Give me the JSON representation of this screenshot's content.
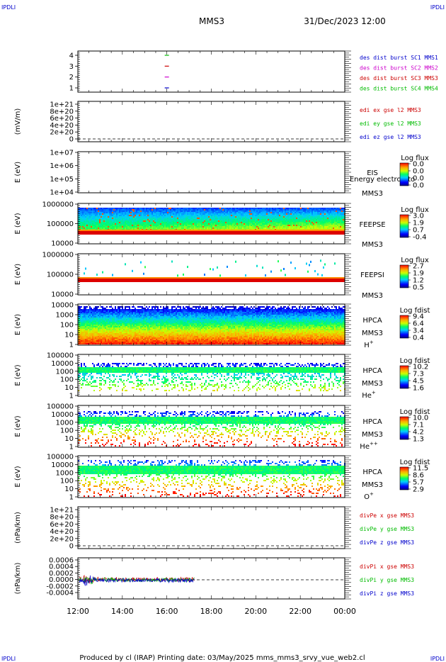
{
  "corner_labels": {
    "top_left": "IPDLI",
    "top_right": "IPDLI",
    "bottom_left": "IPDLI",
    "bottom_right": "IPDLI"
  },
  "header": {
    "spacecraft": "MMS3",
    "datetime": "31/Dec/2023 12:00"
  },
  "footer": {
    "text": "Produced by cl (IRAP)   Printing date: 03/May/2025   mms_mms3_srvy_vue_web2.cl"
  },
  "colors": {
    "blue": "#0000cc",
    "magenta": "#cc00cc",
    "red": "#cc0000",
    "green": "#00bb00",
    "frame": "#000000"
  },
  "chart_data": [
    {
      "id": "burst",
      "type": "scatter",
      "yticks": [
        "1",
        "2",
        "3",
        "4"
      ],
      "series": [
        {
          "name": "des dist burst SC1 MMS1",
          "color": "#0000cc",
          "x": [
            "16:00"
          ],
          "y": [
            1
          ]
        },
        {
          "name": "des dist burst SC2 MMS2",
          "color": "#cc00cc",
          "x": [
            "16:00"
          ],
          "y": [
            2
          ]
        },
        {
          "name": "des dist burst SC3 MMS3",
          "color": "#cc0000",
          "x": [
            "16:00"
          ],
          "y": [
            3
          ]
        },
        {
          "name": "des dist burst SC4 MMS4",
          "color": "#00bb00",
          "x": [
            "16:00"
          ],
          "y": [
            4
          ]
        }
      ]
    },
    {
      "id": "edi",
      "type": "line",
      "ylabel": "(mV/m)",
      "yticks": [
        "1e+21",
        "8e+20",
        "6e+20",
        "4e+20",
        "2e+20",
        "0"
      ],
      "series": [
        {
          "name": "edi ex gse l2 MMS3",
          "color": "#cc0000"
        },
        {
          "name": "edi ey gse l2 MMS3",
          "color": "#00bb00"
        },
        {
          "name": "edi ez gse l2 MMS3",
          "color": "#0000cc"
        }
      ]
    },
    {
      "id": "eis",
      "type": "heatmap",
      "ylabel": "E (eV)",
      "yticks": [
        "1e+07",
        "1e+06",
        "1e+05",
        "1e+04"
      ],
      "instrument": "EIS",
      "overlay": "Energy electron to",
      "spacecraft": "MMS3",
      "colorbar": {
        "title": "Log flux",
        "ticks": [
          "0.0",
          "0.0",
          "0.0",
          "0.0"
        ]
      }
    },
    {
      "id": "feepse",
      "type": "heatmap",
      "ylabel": "E (eV)",
      "yticks": [
        "1000000",
        "100000",
        "10000"
      ],
      "instrument": "FEEPSE",
      "spacecraft": "MMS3",
      "colorbar": {
        "title": "Log flux",
        "ticks": [
          "3.0",
          "1.9",
          "0.7",
          "-0.4"
        ]
      }
    },
    {
      "id": "feepsi",
      "type": "heatmap",
      "ylabel": "E (eV)",
      "yticks": [
        "1000000",
        "100000",
        "10000"
      ],
      "instrument": "FEEPSI",
      "spacecraft": "MMS3",
      "colorbar": {
        "title": "Log flux",
        "ticks": [
          "2.7",
          "1.9",
          "1.2",
          "0.5"
        ]
      }
    },
    {
      "id": "hpca_h",
      "type": "heatmap",
      "ylabel": "E (eV)",
      "yticks": [
        "10000",
        "1000",
        "100",
        "10",
        "1"
      ],
      "instrument": "HPCA",
      "spacecraft": "MMS3",
      "species": "H",
      "charge": "+",
      "colorbar": {
        "title": "Log fdist",
        "ticks": [
          "9.4",
          "6.4",
          "3.4",
          "0.4"
        ]
      }
    },
    {
      "id": "hpca_he",
      "type": "heatmap",
      "ylabel": "E (eV)",
      "yticks": [
        "100000",
        "10000",
        "1000",
        "100",
        "10",
        "1"
      ],
      "instrument": "HPCA",
      "spacecraft": "MMS3",
      "species": "He",
      "charge": "+",
      "colorbar": {
        "title": "Log fdist",
        "ticks": [
          "10.2",
          "7.3",
          "4.5",
          "1.6"
        ]
      }
    },
    {
      "id": "hpca_hepp",
      "type": "heatmap",
      "ylabel": "E (eV)",
      "yticks": [
        "100000",
        "10000",
        "1000",
        "100",
        "10",
        "1"
      ],
      "instrument": "HPCA",
      "spacecraft": "MMS3",
      "species": "He",
      "charge": "++",
      "colorbar": {
        "title": "Log fdist",
        "ticks": [
          "10.0",
          "7.1",
          "4.2",
          "1.3"
        ]
      }
    },
    {
      "id": "hpca_o",
      "type": "heatmap",
      "ylabel": "E (eV)",
      "yticks": [
        "100000",
        "10000",
        "1000",
        "100",
        "10",
        "1"
      ],
      "instrument": "HPCA",
      "spacecraft": "MMS3",
      "species": "O",
      "charge": "+",
      "colorbar": {
        "title": "Log fdist",
        "ticks": [
          "11.5",
          "8.6",
          "5.7",
          "2.9"
        ]
      }
    },
    {
      "id": "divpe",
      "type": "line",
      "ylabel": "(nPa/km)",
      "yticks": [
        "1e+21",
        "8e+20",
        "6e+20",
        "4e+20",
        "2e+20",
        "0"
      ],
      "series": [
        {
          "name": "divPe x gse MMS3",
          "color": "#cc0000"
        },
        {
          "name": "divPe y gse MMS3",
          "color": "#00bb00"
        },
        {
          "name": "divPe z gse MMS3",
          "color": "#0000cc"
        }
      ]
    },
    {
      "id": "divpi",
      "type": "line",
      "ylabel": "(nPa/km)",
      "yticks": [
        "0.0006",
        "0.0004",
        "0.0002",
        "0.0000",
        "-0.0002",
        "-0.0004"
      ],
      "series": [
        {
          "name": "divPi x gse MMS3",
          "color": "#cc0000"
        },
        {
          "name": "divPi y gse MMS3",
          "color": "#00bb00"
        },
        {
          "name": "divPi z gse MMS3",
          "color": "#0000cc"
        }
      ]
    }
  ],
  "xaxis": {
    "ticks": [
      "12:00",
      "14:00",
      "16:00",
      "18:00",
      "20:00",
      "22:00",
      "00:00"
    ]
  }
}
